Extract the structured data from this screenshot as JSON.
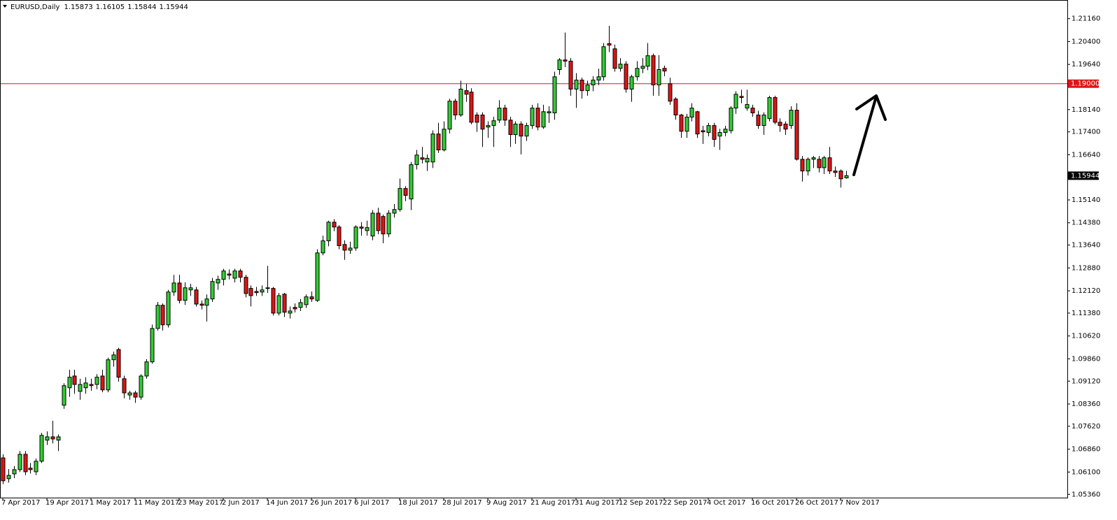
{
  "chart_data": {
    "type": "candlestick",
    "title": "EURUSD,Daily",
    "up_color": "#32cd32",
    "down_color": "#e01414",
    "categories": [
      "7 Apr 2017",
      null,
      null,
      null,
      null,
      null,
      null,
      null,
      "19 Apr 2017",
      null,
      null,
      null,
      null,
      null,
      null,
      null,
      "1 May 2017",
      null,
      null,
      null,
      null,
      null,
      null,
      null,
      "11 May 2017",
      null,
      null,
      null,
      null,
      null,
      null,
      null,
      "23 May 2017",
      null,
      null,
      null,
      null,
      null,
      null,
      null,
      "2 Jun 2017",
      null,
      null,
      null,
      null,
      null,
      null,
      null,
      "14 Jun 2017",
      null,
      null,
      null,
      null,
      null,
      null,
      null,
      "26 Jun 2017",
      null,
      null,
      null,
      null,
      null,
      null,
      null,
      "6 Jul 2017",
      null,
      null,
      null,
      null,
      null,
      null,
      null,
      "18 Jul 2017",
      null,
      null,
      null,
      null,
      null,
      null,
      null,
      "28 Jul 2017",
      null,
      null,
      null,
      null,
      null,
      null,
      null,
      "9 Aug 2017",
      null,
      null,
      null,
      null,
      null,
      null,
      null,
      "21 Aug 2017",
      null,
      null,
      null,
      null,
      null,
      null,
      null,
      "31 Aug 2017",
      null,
      null,
      null,
      null,
      null,
      null,
      null,
      "12 Sep 2017",
      null,
      null,
      null,
      null,
      null,
      null,
      null,
      "22 Sep 2017",
      null,
      null,
      null,
      null,
      null,
      null,
      null,
      "4 Oct 2017",
      null,
      null,
      null,
      null,
      null,
      null,
      null,
      "16 Oct 2017",
      null,
      null,
      null,
      null,
      null,
      null,
      null,
      "26 Oct 2017",
      null,
      null,
      null,
      null,
      null,
      null,
      null,
      "7 Nov 2017",
      null
    ],
    "open": [
      1.0657,
      1.0588,
      1.0604,
      1.0618,
      1.0669,
      1.0623,
      1.0611,
      1.0646,
      1.0716,
      1.0727,
      1.0716,
      1.0832,
      1.089,
      1.0929,
      1.0878,
      1.089,
      1.0901,
      1.0901,
      1.0929,
      1.0883,
      1.0983,
      1.1017,
      1.092,
      1.0866,
      1.0873,
      1.0859,
      1.0929,
      1.0976,
      1.1087,
      1.1164,
      1.1099,
      1.1208,
      1.1238,
      1.118,
      1.1215,
      1.1215,
      1.1168,
      1.1164,
      1.1185,
      1.1238,
      1.125,
      1.1268,
      1.1254,
      1.1278,
      1.1257,
      1.122,
      1.121,
      1.1208,
      1.122,
      1.122,
      1.1138,
      1.1201,
      1.1138,
      1.1157,
      1.1157,
      1.1166,
      1.1192,
      1.118,
      1.1338,
      1.1378,
      1.144,
      1.1424,
      1.1366,
      1.1347,
      1.1354,
      1.1424,
      1.1412,
      1.1394,
      1.147,
      1.1459,
      1.1401,
      1.147,
      1.1482,
      1.1552,
      1.1517,
      1.1631,
      1.1654,
      1.164,
      1.164,
      1.1733,
      1.168,
      1.1749,
      1.1842,
      1.1796,
      1.1877,
      1.1872,
      1.1796,
      1.1796,
      1.1756,
      1.1761,
      1.1779,
      1.1819,
      1.1779,
      1.1731,
      1.1766,
      1.1726,
      1.1761,
      1.1819,
      1.1756,
      1.1803,
      1.1803,
      1.1947,
      1.1979,
      1.1975,
      1.1882,
      1.1912,
      1.1877,
      1.1896,
      1.1912,
      1.1923,
      1.2033,
      1.2016,
      1.1951,
      1.1965,
      1.1882,
      1.1923,
      1.1951,
      1.1958,
      1.1993,
      1.1896,
      1.1951,
      1.19,
      1.1849,
      1.1796,
      1.1742,
      1.1789,
      1.1807,
      1.1744,
      1.1738,
      1.1761,
      1.1726,
      1.1738,
      1.1744,
      1.1819,
      1.1858,
      1.1819,
      1.1819,
      1.1796,
      1.1761,
      1.1784,
      1.1854,
      1.1772,
      1.1766,
      1.1761,
      1.1812,
      1.1649,
      1.161,
      1.1649,
      1.1649,
      1.1621,
      1.1654,
      1.161,
      1.161,
      1.15873
    ],
    "high": [
      1.0669,
      1.062,
      1.063,
      1.068,
      1.068,
      1.064,
      1.0655,
      1.074,
      1.0745,
      1.078,
      1.0735,
      1.0905,
      1.095,
      1.095,
      1.092,
      1.0925,
      1.092,
      1.0935,
      1.095,
      1.099,
      1.101,
      1.1023,
      1.093,
      1.088,
      1.088,
      1.0935,
      1.0985,
      1.11,
      1.1175,
      1.117,
      1.1215,
      1.1265,
      1.1265,
      1.124,
      1.1235,
      1.1225,
      1.118,
      1.12,
      1.1255,
      1.1262,
      1.1285,
      1.1283,
      1.1285,
      1.1285,
      1.1265,
      1.123,
      1.1225,
      1.123,
      1.1295,
      1.1225,
      1.1205,
      1.1205,
      1.116,
      1.117,
      1.1185,
      1.12,
      1.121,
      1.135,
      1.1395,
      1.1445,
      1.145,
      1.143,
      1.138,
      1.1375,
      1.143,
      1.144,
      1.1445,
      1.148,
      1.1488,
      1.1465,
      1.148,
      1.15,
      1.1585,
      1.156,
      1.164,
      1.168,
      1.169,
      1.1665,
      1.1745,
      1.177,
      1.1775,
      1.185,
      1.185,
      1.191,
      1.19,
      1.1885,
      1.1805,
      1.1805,
      1.1775,
      1.179,
      1.1845,
      1.183,
      1.179,
      1.1775,
      1.1775,
      1.177,
      1.183,
      1.1835,
      1.183,
      1.1825,
      1.194,
      1.1985,
      1.207,
      1.1985,
      1.1935,
      1.192,
      1.191,
      1.1925,
      1.195,
      1.2035,
      1.2092,
      1.203,
      1.1985,
      1.1975,
      1.193,
      1.1975,
      1.1985,
      1.2035,
      1.2,
      1.1995,
      1.196,
      1.192,
      1.1855,
      1.18,
      1.18,
      1.1835,
      1.181,
      1.176,
      1.177,
      1.177,
      1.175,
      1.176,
      1.1825,
      1.1875,
      1.188,
      1.188,
      1.183,
      1.181,
      1.1805,
      1.186,
      1.186,
      1.1785,
      1.1775,
      1.1825,
      1.1835,
      1.166,
      1.1655,
      1.166,
      1.166,
      1.166,
      1.169,
      1.1625,
      1.1615,
      1.16105
    ],
    "low": [
      1.057,
      1.0575,
      1.059,
      1.061,
      1.06,
      1.0605,
      1.06,
      1.064,
      1.07,
      1.0705,
      1.068,
      1.082,
      1.086,
      1.087,
      1.085,
      1.087,
      1.088,
      1.0885,
      1.0875,
      1.0875,
      1.096,
      1.091,
      1.0855,
      1.085,
      1.084,
      1.085,
      1.092,
      1.097,
      1.108,
      1.108,
      1.109,
      1.1195,
      1.117,
      1.1165,
      1.1195,
      1.116,
      1.115,
      1.111,
      1.1175,
      1.1215,
      1.123,
      1.125,
      1.124,
      1.124,
      1.119,
      1.116,
      1.1195,
      1.1195,
      1.1205,
      1.113,
      1.113,
      1.1125,
      1.112,
      1.114,
      1.1145,
      1.1155,
      1.1175,
      1.1175,
      1.133,
      1.136,
      1.141,
      1.135,
      1.1315,
      1.1335,
      1.1345,
      1.1395,
      1.1395,
      1.138,
      1.14,
      1.137,
      1.139,
      1.1455,
      1.1475,
      1.151,
      1.148,
      1.1615,
      1.1635,
      1.161,
      1.162,
      1.167,
      1.1675,
      1.1735,
      1.178,
      1.179,
      1.184,
      1.1765,
      1.174,
      1.169,
      1.172,
      1.169,
      1.177,
      1.176,
      1.169,
      1.17,
      1.1665,
      1.171,
      1.175,
      1.1745,
      1.175,
      1.177,
      1.178,
      1.193,
      1.1955,
      1.186,
      1.182,
      1.185,
      1.186,
      1.1875,
      1.1895,
      1.191,
      1.2005,
      1.194,
      1.194,
      1.187,
      1.184,
      1.191,
      1.1935,
      1.1945,
      1.186,
      1.186,
      1.1925,
      1.183,
      1.178,
      1.172,
      1.172,
      1.1775,
      1.172,
      1.17,
      1.1725,
      1.169,
      1.168,
      1.1725,
      1.1735,
      1.18,
      1.1835,
      1.181,
      1.179,
      1.175,
      1.173,
      1.1775,
      1.1765,
      1.174,
      1.173,
      1.175,
      1.1645,
      1.1575,
      1.1595,
      1.162,
      1.1605,
      1.16,
      1.16,
      1.159,
      1.1555,
      1.15844
    ],
    "close": [
      1.0581,
      1.0599,
      1.0618,
      1.0669,
      1.0611,
      1.0618,
      1.0646,
      1.0732,
      1.0727,
      1.072,
      1.0727,
      1.0897,
      1.0925,
      1.0901,
      1.0901,
      1.0906,
      1.0897,
      1.0925,
      1.0883,
      1.0983,
      1.0999,
      1.0925,
      1.0873,
      1.0873,
      1.0859,
      1.0929,
      1.0976,
      1.1087,
      1.1164,
      1.1099,
      1.1208,
      1.1238,
      1.118,
      1.1222,
      1.1222,
      1.1168,
      1.1164,
      1.1185,
      1.1243,
      1.125,
      1.1278,
      1.1264,
      1.1278,
      1.1257,
      1.1203,
      1.1196,
      1.1206,
      1.1215,
      1.1222,
      1.1138,
      1.1196,
      1.1141,
      1.1145,
      1.1152,
      1.1173,
      1.1192,
      1.1185,
      1.1338,
      1.1378,
      1.144,
      1.1424,
      1.1362,
      1.1347,
      1.1354,
      1.1424,
      1.142,
      1.1422,
      1.147,
      1.1412,
      1.1401,
      1.147,
      1.1482,
      1.1552,
      1.1529,
      1.1631,
      1.1663,
      1.1649,
      1.1652,
      1.1733,
      1.168,
      1.1749,
      1.1842,
      1.1796,
      1.1882,
      1.1865,
      1.1772,
      1.1772,
      1.1749,
      1.1761,
      1.1777,
      1.1819,
      1.1779,
      1.1731,
      1.1766,
      1.1726,
      1.1761,
      1.1819,
      1.1756,
      1.1807,
      1.1807,
      1.1923,
      1.1979,
      1.1975,
      1.1882,
      1.1912,
      1.1877,
      1.1896,
      1.1912,
      1.1923,
      1.2023,
      1.2028,
      1.1951,
      1.1965,
      1.1882,
      1.1923,
      1.1951,
      1.1958,
      1.1993,
      1.1896,
      1.1947,
      1.1942,
      1.1842,
      1.1796,
      1.1742,
      1.1789,
      1.1819,
      1.1733,
      1.174,
      1.1761,
      1.1715,
      1.1738,
      1.1749,
      1.1819,
      1.1865,
      1.1854,
      1.1831,
      1.1803,
      1.1761,
      1.1796,
      1.1854,
      1.1772,
      1.1761,
      1.1749,
      1.1812,
      1.1649,
      1.161,
      1.1649,
      1.1654,
      1.1621,
      1.1654,
      1.161,
      1.1605,
      1.1584,
      1.15944
    ],
    "ylim": [
      1.0525,
      1.2178
    ],
    "yticks": [
      {
        "value": 1.2116,
        "label": "1.21160"
      },
      {
        "value": 1.204,
        "label": "1.20400"
      },
      {
        "value": 1.1964,
        "label": "1.19640"
      },
      {
        "value": 1.1814,
        "label": "1.18140"
      },
      {
        "value": 1.174,
        "label": "1.17400"
      },
      {
        "value": 1.1664,
        "label": "1.16640"
      },
      {
        "value": 1.1514,
        "label": "1.15140"
      },
      {
        "value": 1.1438,
        "label": "1.14380"
      },
      {
        "value": 1.1364,
        "label": "1.13640"
      },
      {
        "value": 1.1288,
        "label": "1.12880"
      },
      {
        "value": 1.1212,
        "label": "1.12120"
      },
      {
        "value": 1.1138,
        "label": "1.11380"
      },
      {
        "value": 1.1062,
        "label": "1.10620"
      },
      {
        "value": 1.0986,
        "label": "1.09860"
      },
      {
        "value": 1.0912,
        "label": "1.09120"
      },
      {
        "value": 1.0836,
        "label": "1.08360"
      },
      {
        "value": 1.0762,
        "label": "1.07620"
      },
      {
        "value": 1.0686,
        "label": "1.06860"
      },
      {
        "value": 1.061,
        "label": "1.06100"
      },
      {
        "value": 1.0536,
        "label": "1.05360"
      }
    ],
    "level": {
      "value": 1.19,
      "label": "1.19000",
      "color": "#e01414"
    }
  }
}
